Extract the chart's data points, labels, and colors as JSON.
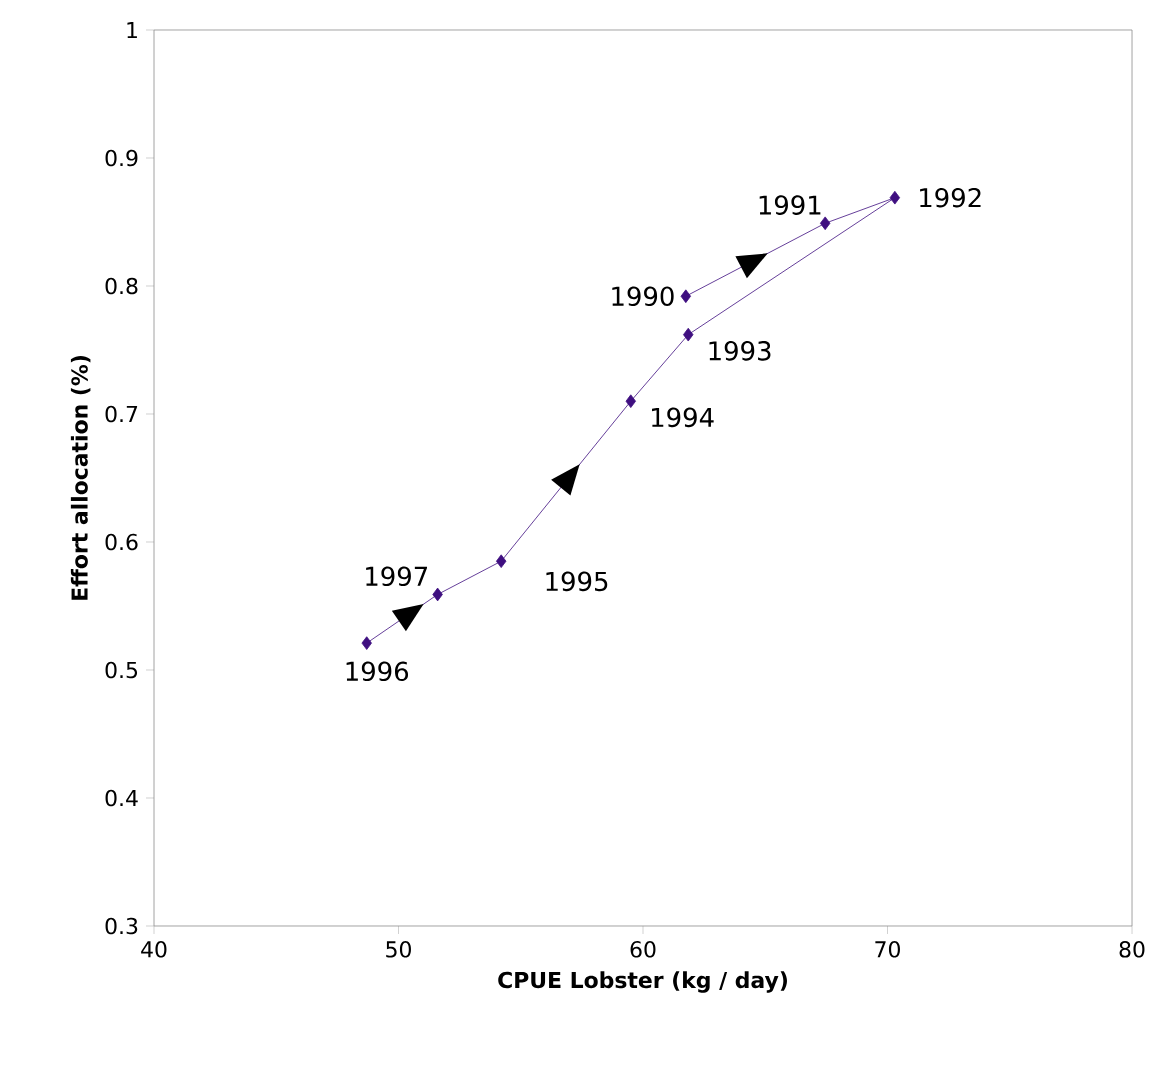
{
  "chart_data": {
    "type": "line",
    "xlabel": "CPUE Lobster (kg / day)",
    "ylabel": "Effort allocation (%)",
    "x": [
      61.75,
      67.45,
      70.3,
      61.85,
      59.5,
      54.2,
      51.6,
      48.7
    ],
    "values": [
      0.792,
      0.849,
      0.869,
      0.762,
      0.71,
      0.585,
      0.559,
      0.521
    ],
    "color": "#3f0f80",
    "marker": "diamond",
    "xlim": [
      40,
      80
    ],
    "xticks": [
      40,
      50,
      60,
      70,
      80
    ],
    "ylim": [
      0.3,
      1
    ],
    "yticks": [
      0.3,
      0.4,
      0.5,
      0.6,
      0.7,
      0.8,
      0.9,
      1
    ],
    "annotations": [
      {
        "text": "1990",
        "x": 61.75,
        "y": 0.792
      },
      {
        "text": "1991",
        "x": 67.45,
        "y": 0.849
      },
      {
        "text": "1992",
        "x": 70.3,
        "y": 0.869
      },
      {
        "text": "1993",
        "x": 61.85,
        "y": 0.762
      },
      {
        "text": "1994",
        "x": 59.5,
        "y": 0.71
      },
      {
        "text": "1995",
        "x": 54.2,
        "y": 0.585
      },
      {
        "text": "1997",
        "x": 51.6,
        "y": 0.559
      },
      {
        "text": "1996",
        "x": 48.7,
        "y": 0.521
      }
    ]
  }
}
